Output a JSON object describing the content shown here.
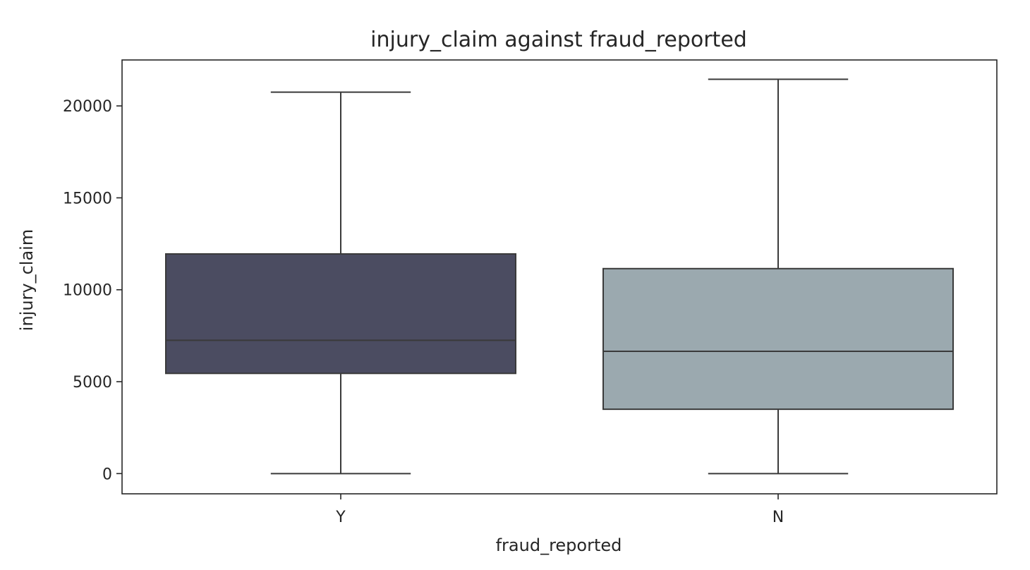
{
  "chart_data": {
    "type": "box",
    "title": "injury_claim against fraud_reported",
    "xlabel": "fraud_reported",
    "ylabel": "injury_claim",
    "ylim": [
      -1100,
      22500
    ],
    "yticks": [
      0,
      5000,
      10000,
      15000,
      20000
    ],
    "grid": false,
    "categories": [
      "Y",
      "N"
    ],
    "boxes": [
      {
        "category": "Y",
        "whisker_low": 0,
        "q1": 5450,
        "median": 7250,
        "q3": 11950,
        "whisker_high": 20750,
        "color": "#4b4c61"
      },
      {
        "category": "N",
        "whisker_low": 0,
        "q1": 3500,
        "median": 6650,
        "q3": 11150,
        "whisker_high": 21450,
        "color": "#9ba9af"
      }
    ]
  }
}
